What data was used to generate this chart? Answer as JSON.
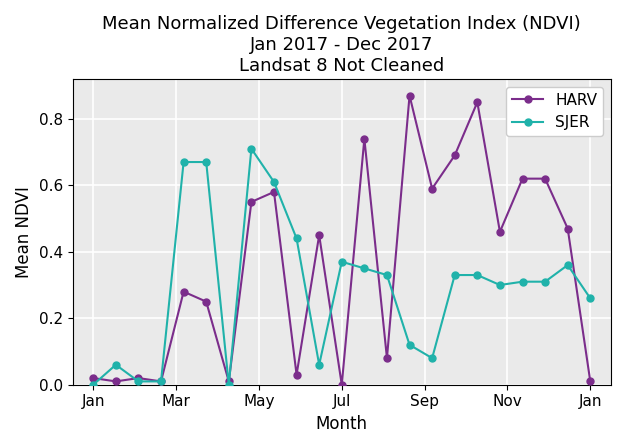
{
  "title": "Mean Normalized Difference Vegetation Index (NDVI)\nJan 2017 - Dec 2017\nLandsat 8 Not Cleaned",
  "xlabel": "Month",
  "ylabel": "Mean NDVI",
  "harv_values": [
    0.02,
    0.01,
    0.02,
    0.01,
    0.28,
    0.25,
    0.01,
    0.55,
    0.58,
    0.03,
    0.45,
    0.0,
    0.74,
    0.08,
    0.87,
    0.59,
    0.69,
    0.85,
    0.46,
    0.62,
    0.62,
    0.47,
    0.01
  ],
  "sjer_values": [
    0.0,
    0.06,
    0.01,
    0.01,
    0.67,
    0.67,
    0.0,
    0.71,
    0.61,
    0.44,
    0.06,
    0.37,
    0.35,
    0.33,
    0.12,
    0.08,
    0.33,
    0.33,
    0.3,
    0.31,
    0.31,
    0.36,
    0.26
  ],
  "harv_color": "#7B2D8B",
  "sjer_color": "#20B2AA",
  "ylim": [
    0.0,
    0.92
  ],
  "yticks": [
    0.0,
    0.2,
    0.4,
    0.6,
    0.8
  ],
  "month_tick_labels": [
    "Jan",
    "Mar",
    "May",
    "Jul",
    "Sep",
    "Nov",
    "Jan"
  ],
  "background_color": "#eaeaea",
  "grid_color": "white"
}
